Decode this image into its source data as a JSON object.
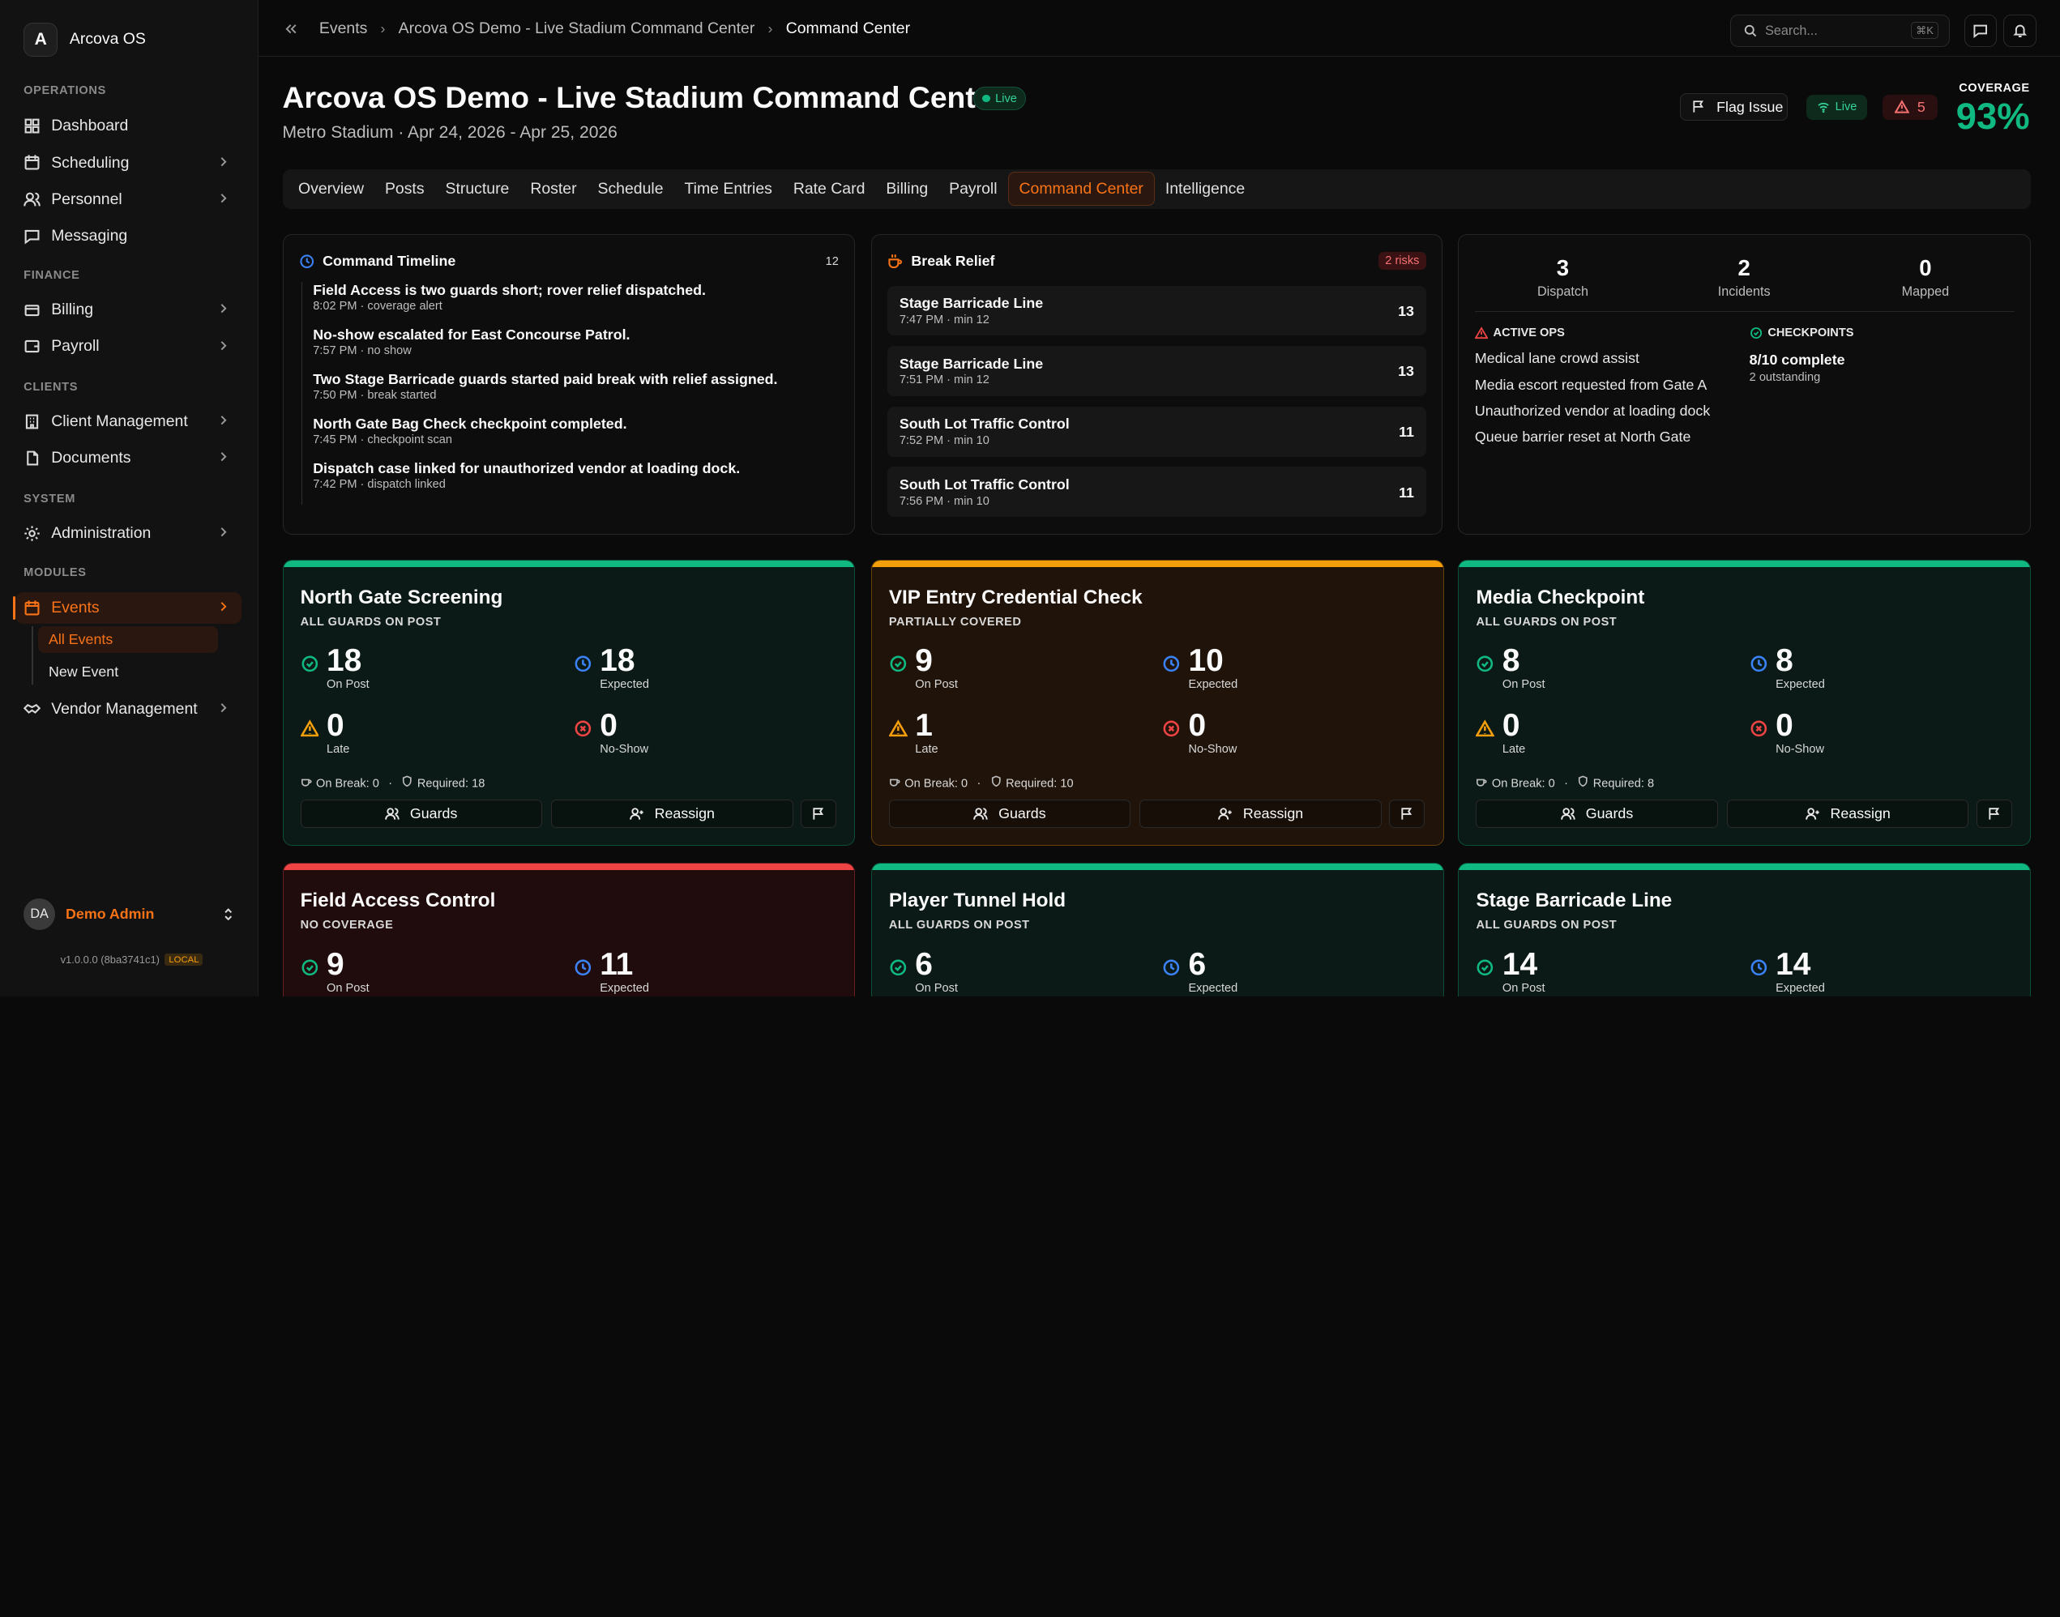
{
  "app": {
    "name": "Arcova OS",
    "logo": "A"
  },
  "sidebar": {
    "sections": {
      "operations": "OPERATIONS",
      "finance": "FINANCE",
      "clients": "CLIENTS",
      "system": "SYSTEM",
      "modules": "MODULES"
    },
    "items": {
      "dashboard": "Dashboard",
      "scheduling": "Scheduling",
      "personnel": "Personnel",
      "messaging": "Messaging",
      "billing": "Billing",
      "payroll": "Payroll",
      "client_management": "Client Management",
      "documents": "Documents",
      "administration": "Administration",
      "events": "Events",
      "vendor_management": "Vendor Management"
    },
    "sub": {
      "all_events": "All Events",
      "new_event": "New Event"
    },
    "user": {
      "initials": "DA",
      "name": "Demo Admin"
    },
    "version": "v1.0.0.0 (8ba3741c1)",
    "env": "LOCAL"
  },
  "topbar": {
    "crumbs": [
      "Events",
      "Arcova OS Demo - Live Stadium Command Center",
      "Command Center"
    ],
    "search_placeholder": "Search...",
    "shortcut": "⌘K"
  },
  "header": {
    "title": "Arcova OS Demo - Live Stadium Command Center",
    "live": "Live",
    "subtitle": "Metro Stadium · Apr 24, 2026 - Apr 25, 2026",
    "flag_issue": "Flag Issue",
    "live_btn": "Live",
    "alerts": "5",
    "coverage_label": "COVERAGE",
    "coverage_value": "93%"
  },
  "tabs": [
    "Overview",
    "Posts",
    "Structure",
    "Roster",
    "Schedule",
    "Time Entries",
    "Rate Card",
    "Billing",
    "Payroll",
    "Command Center",
    "Intelligence"
  ],
  "active_tab": "Command Center",
  "timeline": {
    "title": "Command Timeline",
    "count": "12",
    "items": [
      {
        "t": "Field Access is two guards short; rover relief dispatched.",
        "s": "8:02 PM · coverage alert"
      },
      {
        "t": "No-show escalated for East Concourse Patrol.",
        "s": "7:57 PM · no show"
      },
      {
        "t": "Two Stage Barricade guards started paid break with relief assigned.",
        "s": "7:50 PM · break started"
      },
      {
        "t": "North Gate Bag Check checkpoint completed.",
        "s": "7:45 PM · checkpoint scan"
      },
      {
        "t": "Dispatch case linked for unauthorized vendor at loading dock.",
        "s": "7:42 PM · dispatch linked"
      }
    ]
  },
  "break_relief": {
    "title": "Break Relief",
    "risks": "2 risks",
    "items": [
      {
        "t": "Stage Barricade Line",
        "s": "7:47 PM · min 12",
        "n": "13"
      },
      {
        "t": "Stage Barricade Line",
        "s": "7:51 PM · min 12",
        "n": "13"
      },
      {
        "t": "South Lot Traffic Control",
        "s": "7:52 PM · min 10",
        "n": "11"
      },
      {
        "t": "South Lot Traffic Control",
        "s": "7:56 PM · min 10",
        "n": "11"
      }
    ]
  },
  "ops": {
    "stats": [
      {
        "v": "3",
        "l": "Dispatch"
      },
      {
        "v": "2",
        "l": "Incidents"
      },
      {
        "v": "0",
        "l": "Mapped"
      }
    ],
    "active_title": "ACTIVE OPS",
    "active": [
      "Medical lane crowd assist",
      "Media escort requested from Gate A",
      "Unauthorized vendor at loading dock",
      "Queue barrier reset at North Gate"
    ],
    "checkpoints_title": "CHECKPOINTS",
    "checkpoints_value": "8/10 complete",
    "checkpoints_sub": "2 outstanding"
  },
  "labels": {
    "on_post": "On Post",
    "expected": "Expected",
    "late": "Late",
    "no_show": "No-Show",
    "on_break": "On Break:",
    "required": "Required:",
    "guards": "Guards",
    "reassign": "Reassign"
  },
  "posts": [
    {
      "name": "North Gate Screening",
      "status": "ALL GUARDS ON POST",
      "on_post": "18",
      "expected": "18",
      "late": "0",
      "no_show": "0",
      "on_break": "0",
      "required": "18",
      "accent": "#10b981",
      "bg": "#0b1a16"
    },
    {
      "name": "VIP Entry Credential Check",
      "status": "PARTIALLY COVERED",
      "on_post": "9",
      "expected": "10",
      "late": "1",
      "no_show": "0",
      "on_break": "0",
      "required": "10",
      "accent": "#f59e0b",
      "bg": "#1f130a"
    },
    {
      "name": "Media Checkpoint",
      "status": "ALL GUARDS ON POST",
      "on_post": "8",
      "expected": "8",
      "late": "0",
      "no_show": "0",
      "on_break": "0",
      "required": "8",
      "accent": "#10b981",
      "bg": "#0b1a16"
    },
    {
      "name": "Field Access Control",
      "status": "NO COVERAGE",
      "on_post": "9",
      "expected": "11",
      "late": "",
      "no_show": "",
      "on_break": "",
      "required": "",
      "accent": "#ef4444",
      "bg": "#200c0d"
    },
    {
      "name": "Player Tunnel Hold",
      "status": "ALL GUARDS ON POST",
      "on_post": "6",
      "expected": "6",
      "late": "",
      "no_show": "",
      "on_break": "",
      "required": "",
      "accent": "#10b981",
      "bg": "#0b1a16"
    },
    {
      "name": "Stage Barricade Line",
      "status": "ALL GUARDS ON POST",
      "on_post": "14",
      "expected": "14",
      "late": "",
      "no_show": "",
      "on_break": "",
      "required": "",
      "accent": "#10b981",
      "bg": "#0b1a16"
    }
  ]
}
